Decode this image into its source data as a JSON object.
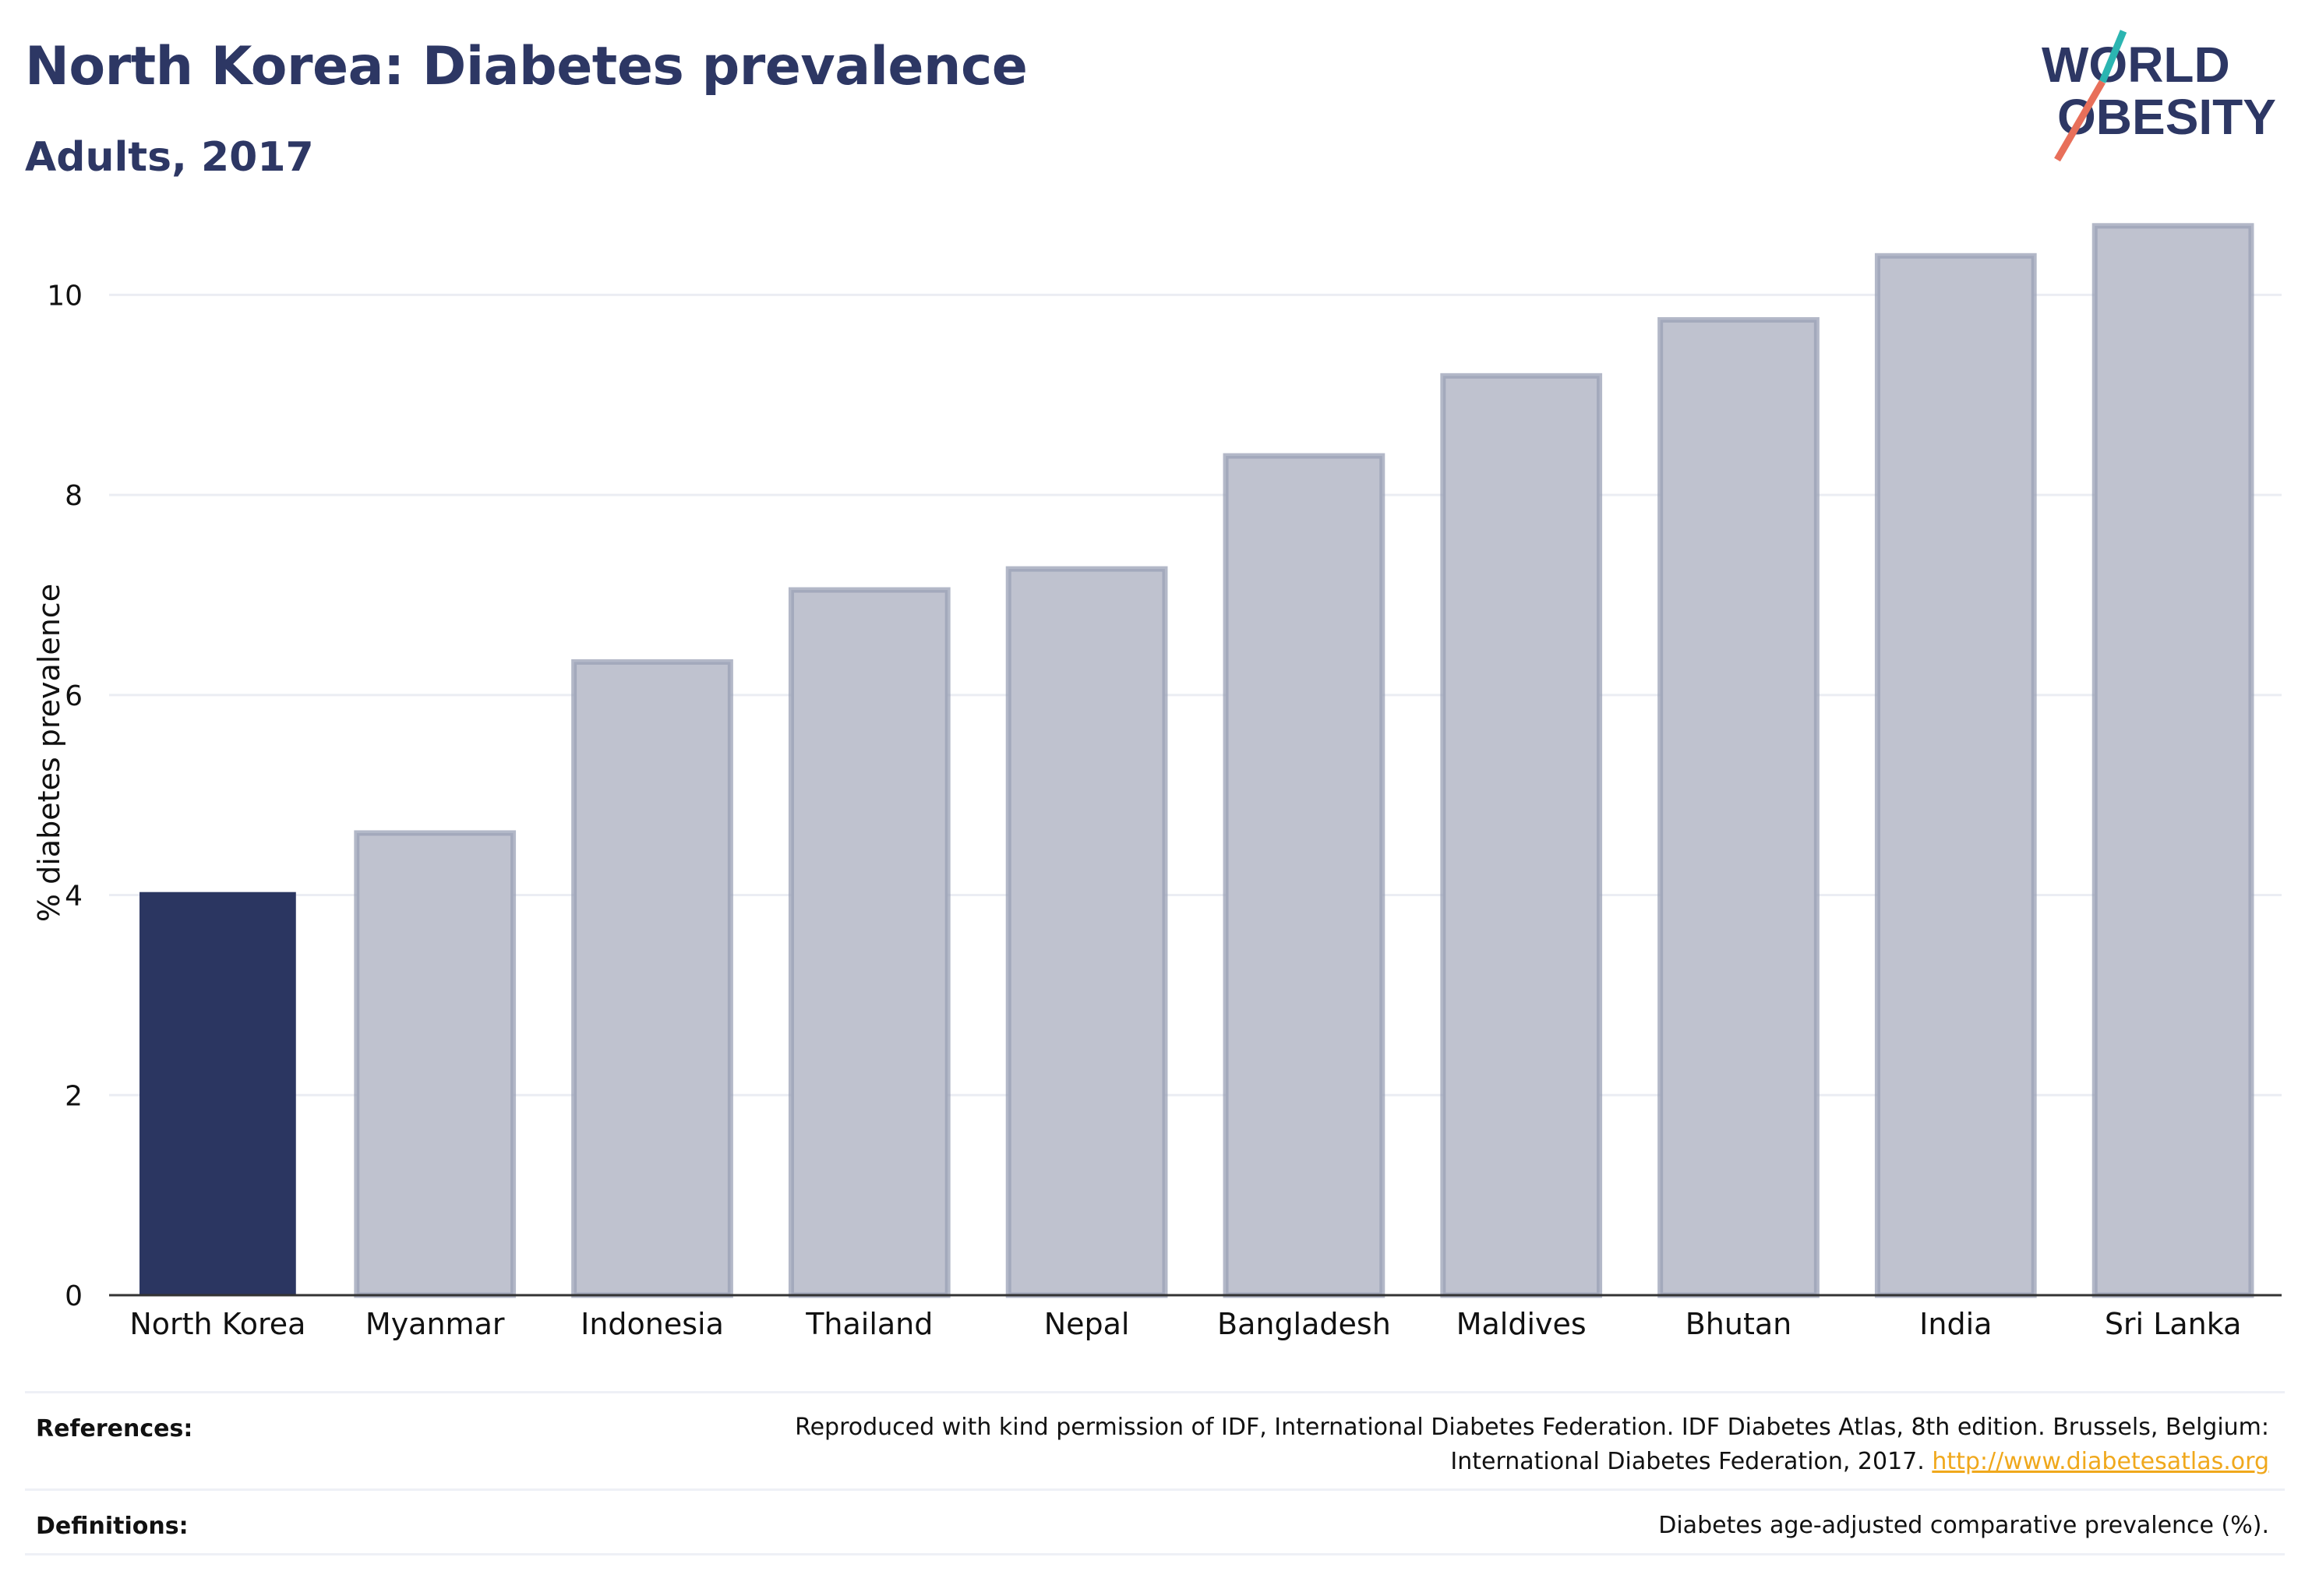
{
  "header": {
    "title": "North Korea: Diabetes prevalence",
    "subtitle": "Adults, 2017"
  },
  "logo": {
    "line1": "WORLD",
    "line2": "OBESITY",
    "colors": {
      "text": "#2d3764",
      "slash_teal": "#2bb5b1",
      "slash_coral": "#e86f5a"
    }
  },
  "chart_data": {
    "type": "bar",
    "title": "",
    "xlabel": "",
    "ylabel": "% diabetes prevalence",
    "ylim": [
      0,
      11
    ],
    "yticks": [
      0,
      2,
      4,
      6,
      8,
      10
    ],
    "grid": true,
    "categories": [
      "North Korea",
      "Myanmar",
      "Indonesia",
      "Thailand",
      "Nepal",
      "Bangladesh",
      "Maldives",
      "Bhutan",
      "India",
      "Sri Lanka"
    ],
    "values": [
      4.03,
      4.62,
      6.33,
      7.05,
      7.26,
      8.39,
      9.19,
      9.75,
      10.39,
      10.69
    ],
    "highlight_index": 0,
    "colors": {
      "highlight": "#2b3661",
      "other_fill": "#bfc2cf",
      "other_stroke": "#9aa0b6",
      "grid": "#ebedf3",
      "axis": "#333333"
    }
  },
  "footer": {
    "references_label": "References:",
    "references_line1": "Reproduced with kind permission of IDF, International Diabetes Federation. IDF Diabetes Atlas, 8th edition. Brussels, Belgium:",
    "references_line2": "International Diabetes Federation, 2017. ",
    "references_link": "http://www.diabetesatlas.org",
    "definitions_label": "Definitions:",
    "definitions_text": "Diabetes age-adjusted comparative prevalence (%)."
  }
}
